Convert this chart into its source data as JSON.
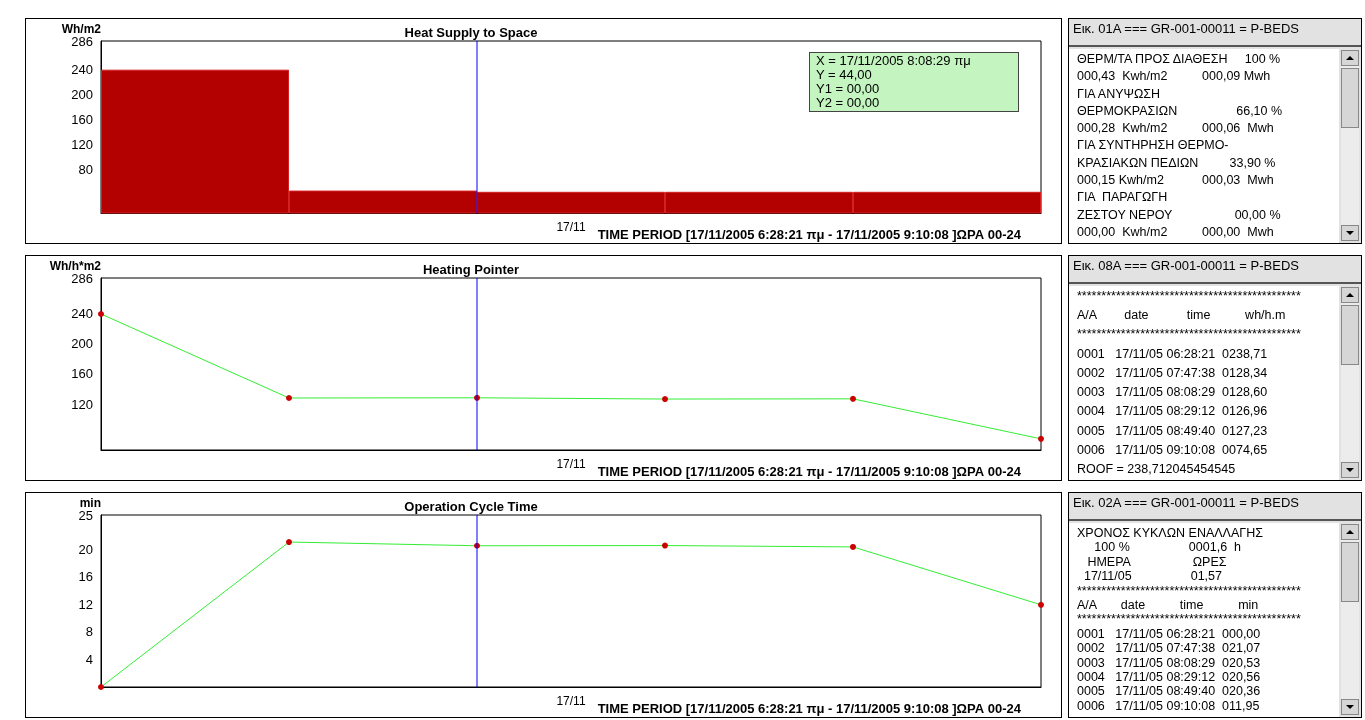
{
  "chart_data": [
    {
      "type": "bar",
      "title": "Heat Supply to Space",
      "ylabel": "Wh/m2",
      "xlabel": "17/11",
      "categories": [
        null,
        null,
        null,
        null,
        null
      ],
      "values": [
        240,
        46,
        44,
        44,
        44
      ],
      "color": "#b30000",
      "ylim": [
        10,
        286
      ],
      "yticks": [
        80,
        120,
        160,
        200,
        240,
        286
      ],
      "tick_labels": "y",
      "annotations": [
        "TIME PERIOD [17/11/2005 6:28:21 πμ - 17/11/2005 9:10:08 ]ΩΡΑ 00-24",
        "X = 17/11/2005 8:08:29 πμ",
        "Y = 44,00",
        "Y1 = 00,00",
        "Y2 = 00,00"
      ]
    },
    {
      "type": "other",
      "title": "Εικ. 01A === GR-001-00011 = P-BEDS",
      "annotations": [
        "ΘΕΡΜ/ΤΑ ΠΡΟΣ ΔΙΑΘΕΣΗ     100 %",
        "000,43  Kwh/m2          000,09 Mwh",
        "ΓΙΑ ΑΝΥΨΩΣΗ",
        "ΘΕΡΜΟΚΡΑΣΙΩΝ                 66,10 %",
        "000,28  Kwh/m2          000,06  Mwh",
        "ΓΙΑ ΣΥΝΤΗΡΗΣΗ ΘΕΡΜΟ-",
        "ΚΡΑΣΙΑΚΩΝ ΠΕΔΙΩΝ         33,90 %",
        "000,15 Kwh/m2           000,03  Mwh",
        "ΓΙΑ  ΠΑΡΑΓΩΓΗ",
        "ΖΕΣΤΟΥ ΝΕΡΟΥ                  00,00 %",
        "000,00  Kwh/m2          000,00  Mwh"
      ]
    },
    {
      "type": "line",
      "title": "Heating Pointer",
      "ylabel": "Wh/h*m2",
      "xlabel": "17/11",
      "categories": [
        null,
        null,
        null,
        null,
        null,
        null
      ],
      "values": [
        238.71,
        128.34,
        128.6,
        126.96,
        127.23,
        74.65
      ],
      "color": "#33ee33",
      "marker": "circle",
      "line_style": "solid",
      "ylim": [
        60,
        286
      ],
      "yticks": [
        120,
        160,
        200,
        240,
        286
      ],
      "tick_labels": "y",
      "annotations": [
        "TIME PERIOD [17/11/2005 6:28:21 πμ - 17/11/2005 9:10:08 ]ΩΡΑ 00-24"
      ]
    },
    {
      "type": "other",
      "title": "Εικ. 08A === GR-001-00011 = P-BEDS",
      "annotations": [
        "**********************************************",
        "A/A        date           time          wh/h.m",
        "**********************************************",
        "0001   17/11/05 06:28:21  0238,71",
        "0002   17/11/05 07:47:38  0128,34",
        "0003   17/11/05 08:08:29  0128,60",
        "0004   17/11/05 08:29:12  0126,96",
        "0005   17/11/05 08:49:40  0127,23",
        "0006   17/11/05 09:10:08  0074,65",
        "ROOF = 238,712045454545"
      ]
    },
    {
      "type": "line",
      "title": "Operation Cycle Time",
      "ylabel": "min",
      "xlabel": "17/11",
      "categories": [
        null,
        null,
        null,
        null,
        null,
        null
      ],
      "values": [
        0,
        21.07,
        20.53,
        20.56,
        20.36,
        11.95
      ],
      "color": "#33ee33",
      "marker": "circle",
      "line_style": "solid",
      "ylim": [
        0,
        25
      ],
      "yticks": [
        4,
        8,
        12,
        16,
        20,
        25
      ],
      "tick_labels": "y",
      "annotations": [
        "TIME PERIOD [17/11/2005 6:28:21 πμ - 17/11/2005 9:10:08 ]ΩΡΑ 00-24"
      ]
    },
    {
      "type": "other",
      "title": "Εικ. 02A === GR-001-00011 = P-BEDS",
      "annotations": [
        "ΧΡΟΝΟΣ ΚΥΚΛΩΝ ΕΝΑΛΛΑΓΗΣ",
        "     100 %                 0001,6  h",
        "   ΗΜΕΡΑ                  ΩΡΕΣ",
        "  17/11/05                 01,57",
        "**********************************************",
        "A/A       date          time          min",
        "**********************************************",
        "0001   17/11/05 06:28:21  000,00",
        "0002   17/11/05 07:47:38  021,07",
        "0003   17/11/05 08:08:29  020,53",
        "0004   17/11/05 08:29:12  020,56",
        "0005   17/11/05 08:49:40  020,36",
        "0006   17/11/05 09:10:08  011,95"
      ]
    }
  ]
}
